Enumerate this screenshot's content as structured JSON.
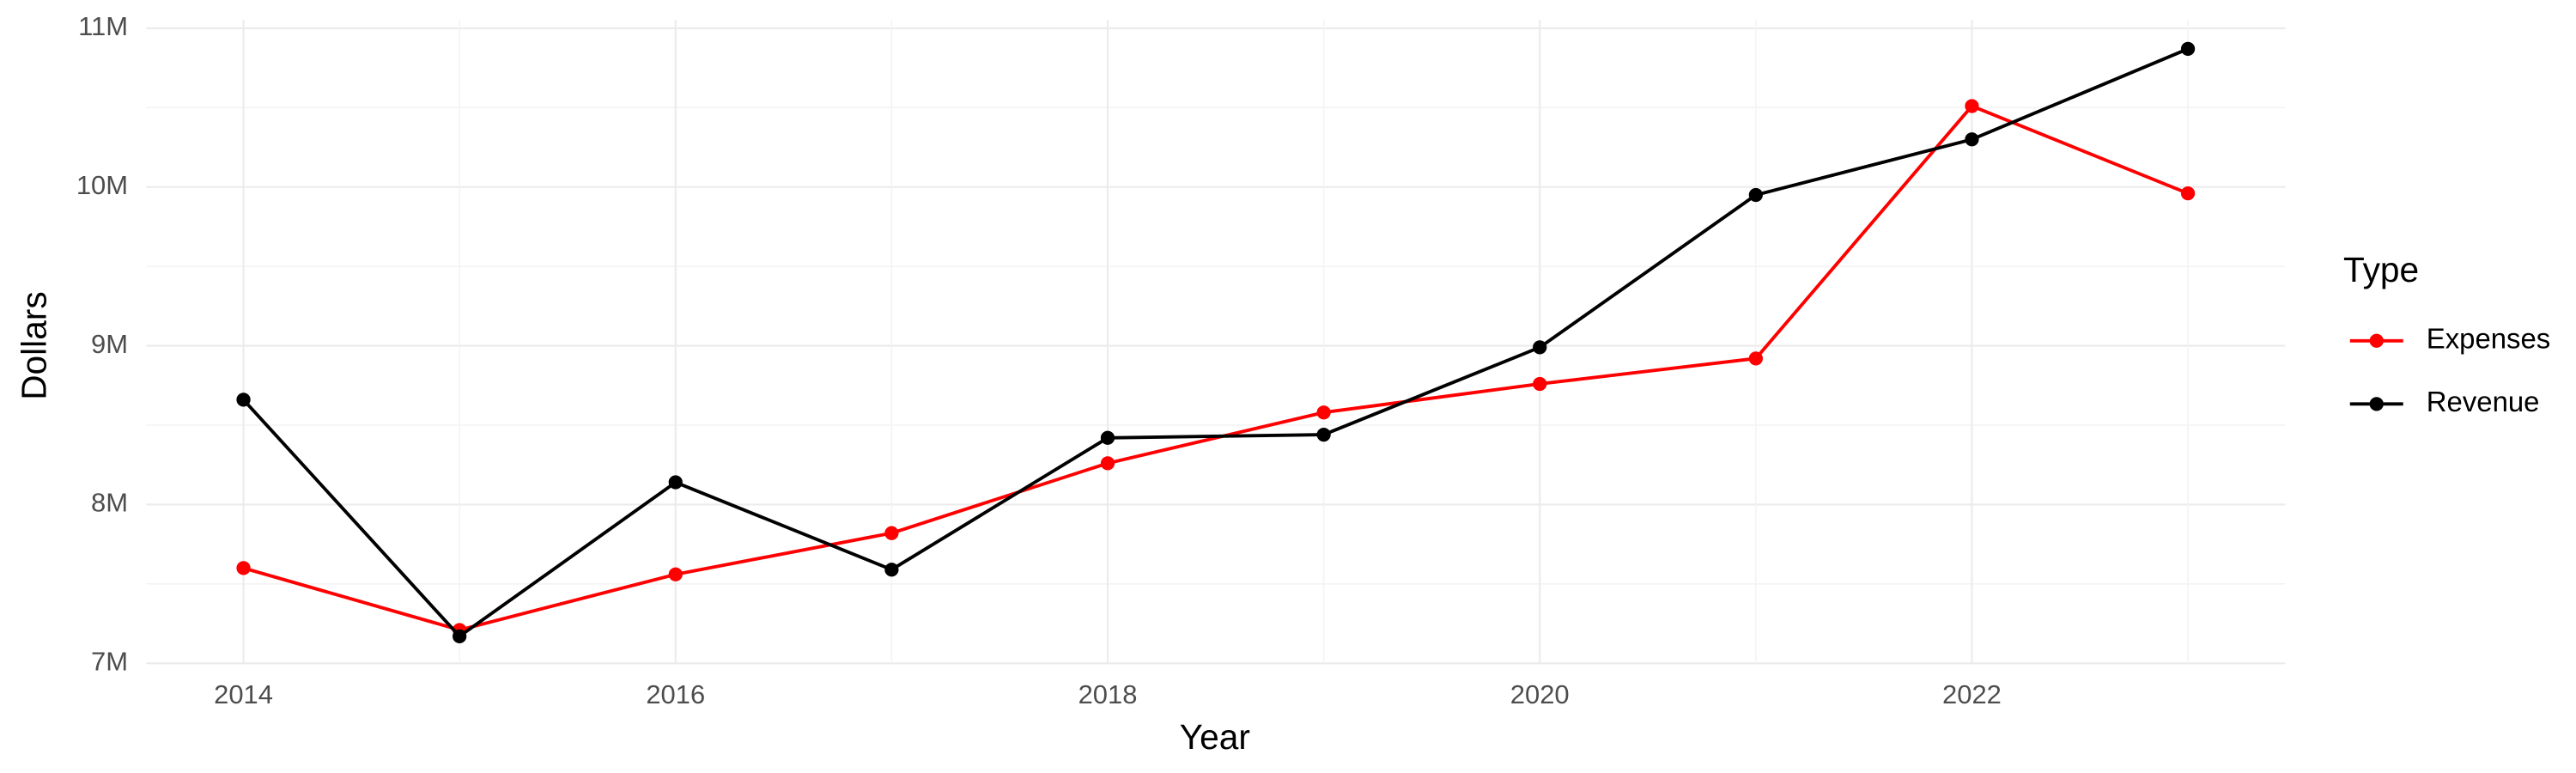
{
  "chart_data": {
    "type": "line",
    "x_label": "Year",
    "y_label": "Dollars",
    "legend_title": "Type",
    "x": [
      2014,
      2015,
      2016,
      2017,
      2018,
      2019,
      2020,
      2021,
      2022,
      2023
    ],
    "series": [
      {
        "name": "Expenses",
        "color": "#ff0000",
        "values": [
          7600000,
          7210000,
          7560000,
          7820000,
          8260000,
          8580000,
          8760000,
          8920000,
          10510000,
          9960000
        ]
      },
      {
        "name": "Revenue",
        "color": "#000000",
        "values": [
          8660000,
          7170000,
          8140000,
          7590000,
          8420000,
          8440000,
          8990000,
          9950000,
          10300000,
          10870000
        ]
      }
    ],
    "xlim": [
      2013.55,
      2023.45
    ],
    "xticks": [
      2014,
      2016,
      2018,
      2020,
      2022
    ],
    "ylim": [
      7000000,
      11000000
    ],
    "yticks": [
      {
        "value": 7000000,
        "label": "7M"
      },
      {
        "value": 8000000,
        "label": "8M"
      },
      {
        "value": 9000000,
        "label": "9M"
      },
      {
        "value": 10000000,
        "label": "10M"
      },
      {
        "value": 11000000,
        "label": "11M"
      }
    ],
    "grid": true,
    "legend_position": "right"
  }
}
